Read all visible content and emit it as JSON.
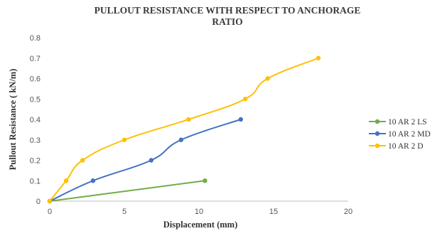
{
  "chart_data": {
    "type": "line",
    "title_line1": "PULLOUT RESISTANCE WITH RESPECT TO ANCHORAGE",
    "title_line2": "RATIO",
    "xlabel": "Displacement (mm)",
    "ylabel": "Pullout Resistance ( kN/m)",
    "xlim": [
      0,
      20
    ],
    "ylim": [
      0,
      0.8
    ],
    "xticks": [
      "0",
      "5",
      "10",
      "15",
      "20"
    ],
    "yticks": [
      "0",
      "0.1",
      "0.2",
      "0.3",
      "0.4",
      "0.5",
      "0.6",
      "0.7",
      "0.8"
    ],
    "grid": false,
    "legend_position": "right",
    "series": [
      {
        "name": "10 AR 2 LS",
        "color": "#70ad47",
        "points": [
          [
            0,
            0
          ],
          [
            10.4,
            0.1
          ]
        ]
      },
      {
        "name": "10 AR 2 MD",
        "color": "#4472c4",
        "points": [
          [
            0,
            0
          ],
          [
            2.9,
            0.1
          ],
          [
            6.8,
            0.2
          ],
          [
            8.8,
            0.3
          ],
          [
            12.8,
            0.4
          ]
        ]
      },
      {
        "name": "10 AR 2 D",
        "color": "#ffc000",
        "points": [
          [
            0,
            0
          ],
          [
            1.1,
            0.1
          ],
          [
            2.2,
            0.2
          ],
          [
            5.0,
            0.3
          ],
          [
            9.3,
            0.4
          ],
          [
            13.1,
            0.5
          ],
          [
            14.6,
            0.6
          ],
          [
            18.0,
            0.7
          ]
        ]
      }
    ]
  }
}
